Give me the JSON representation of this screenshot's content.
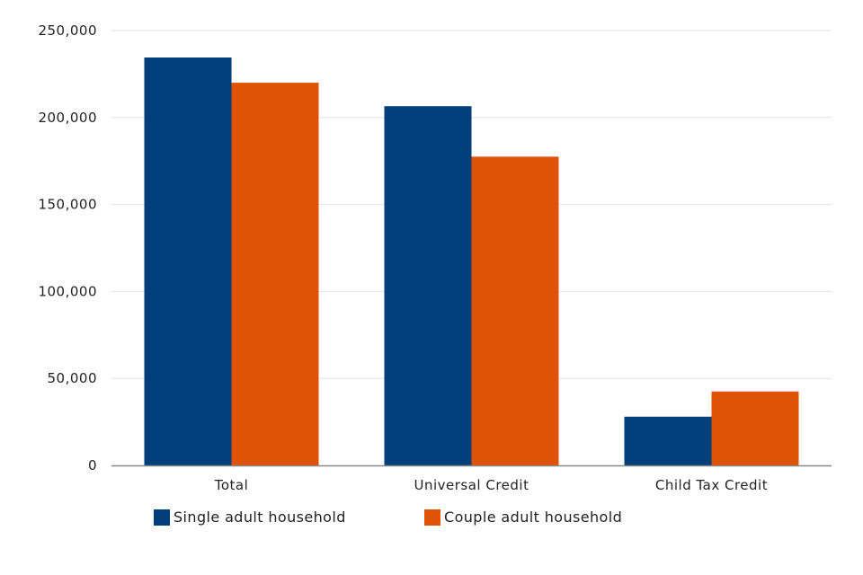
{
  "chart_data": {
    "type": "bar",
    "title": "",
    "xlabel": "",
    "ylabel": "",
    "categories": [
      "Total",
      "Universal Credit",
      "Child Tax Credit"
    ],
    "series": [
      {
        "name": "Single adult household",
        "color": "#003f7a",
        "values": [
          234500,
          206500,
          28000
        ]
      },
      {
        "name": "Couple adult household",
        "color": "#e05206",
        "values": [
          220000,
          177500,
          42500
        ]
      }
    ],
    "ylim": [
      0,
      250000
    ],
    "yticks": [
      0,
      50000,
      100000,
      150000,
      200000,
      250000
    ],
    "ytick_labels": [
      "0",
      "50,000",
      "100,000",
      "150,000",
      "200,000",
      "250,000"
    ],
    "grid": true,
    "legend_position": "bottom"
  }
}
